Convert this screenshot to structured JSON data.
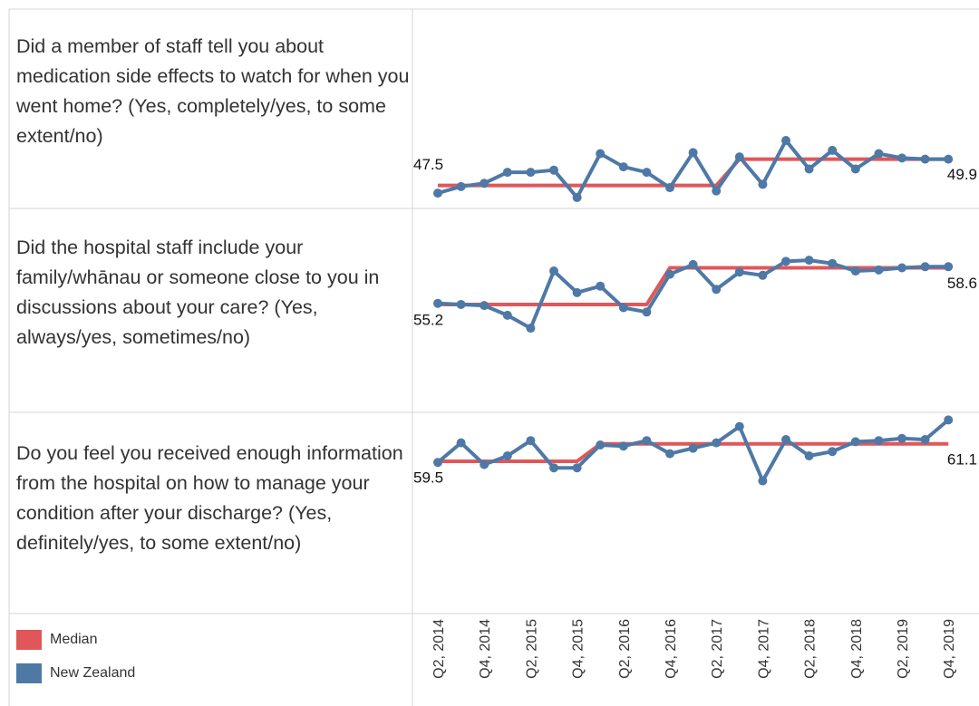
{
  "chart_data": [
    {
      "type": "line",
      "title": "Did a member of staff tell you about medication side effects to watch for when you went home? (Yes, completely/yes, to some extent/no)",
      "categories": [
        "Q2, 2014",
        null,
        "Q4, 2014",
        null,
        "Q2, 2015",
        null,
        "Q4, 2015",
        null,
        "Q2, 2016",
        null,
        "Q4, 2016",
        null,
        "Q2, 2017",
        null,
        "Q4, 2017",
        null,
        "Q2, 2018",
        null,
        "Q4, 2018",
        null,
        "Q2, 2019",
        null,
        "Q4, 2019"
      ],
      "ylim": [
        45.4,
        63.6
      ],
      "series": [
        {
          "name": "Median",
          "color": "#e15759",
          "values": [
            47.5,
            47.5,
            47.5,
            47.5,
            47.5,
            47.5,
            47.5,
            47.5,
            47.5,
            47.5,
            47.5,
            47.5,
            47.5,
            49.9,
            49.9,
            49.9,
            49.9,
            49.9,
            49.9,
            49.9,
            49.9,
            49.9,
            49.9
          ]
        },
        {
          "name": "New Zealand",
          "color": "#4e79a7",
          "values": [
            46.8,
            47.4,
            47.7,
            48.7,
            48.7,
            48.9,
            46.4,
            50.4,
            49.2,
            48.7,
            47.3,
            50.5,
            47.0,
            50.1,
            47.6,
            51.6,
            49.0,
            50.7,
            49.0,
            50.4,
            50.0,
            49.9,
            49.9
          ]
        }
      ]
    },
    {
      "type": "line",
      "title": "Did the hospital staff include your family/whānau or someone close to you in discussions about your care? (Yes, always/yes, sometimes/no)",
      "categories": [
        "Q2, 2014",
        null,
        "Q4, 2014",
        null,
        "Q2, 2015",
        null,
        "Q4, 2015",
        null,
        "Q2, 2016",
        null,
        "Q4, 2016",
        null,
        "Q2, 2017",
        null,
        "Q4, 2017",
        null,
        "Q2, 2018",
        null,
        "Q4, 2018",
        null,
        "Q2, 2019",
        null,
        "Q4, 2019"
      ],
      "ylim": [
        45.2,
        64.1
      ],
      "series": [
        {
          "name": "Median",
          "color": "#e15759",
          "values": [
            55.2,
            55.2,
            55.2,
            55.2,
            55.2,
            55.2,
            55.2,
            55.2,
            55.2,
            55.2,
            58.6,
            58.6,
            58.6,
            58.6,
            58.6,
            58.6,
            58.6,
            58.6,
            58.6,
            58.6,
            58.6,
            58.6,
            58.6
          ]
        },
        {
          "name": "New Zealand",
          "color": "#4e79a7",
          "values": [
            55.3,
            55.2,
            55.1,
            54.2,
            53.0,
            58.3,
            56.3,
            56.9,
            54.9,
            54.5,
            58.0,
            58.9,
            56.6,
            58.2,
            57.9,
            59.2,
            59.3,
            59.0,
            58.3,
            58.4,
            58.6,
            58.7,
            58.7
          ]
        }
      ]
    },
    {
      "type": "line",
      "title": "Do you feel you received enough information from the hospital on how to manage your condition after your discharge? (Yes, definitely/yes, to some extent/no)",
      "categories": [
        "Q2, 2014",
        null,
        "Q4, 2014",
        null,
        "Q2, 2015",
        null,
        "Q4, 2015",
        null,
        "Q2, 2016",
        null,
        "Q4, 2016",
        null,
        "Q2, 2017",
        null,
        "Q4, 2017",
        null,
        "Q2, 2018",
        null,
        "Q4, 2018",
        null,
        "Q2, 2019",
        null,
        "Q4, 2019"
      ],
      "ylim": [
        45.5,
        64.0
      ],
      "series": [
        {
          "name": "Median",
          "color": "#e15759",
          "values": [
            59.5,
            59.5,
            59.5,
            59.5,
            59.5,
            59.5,
            59.5,
            61.1,
            61.1,
            61.1,
            61.1,
            61.1,
            61.1,
            61.1,
            61.1,
            61.1,
            61.1,
            61.1,
            61.1,
            61.1,
            61.1,
            61.1,
            61.1
          ]
        },
        {
          "name": "New Zealand",
          "color": "#4e79a7",
          "values": [
            59.4,
            61.2,
            59.2,
            60.0,
            61.4,
            58.9,
            58.9,
            61.0,
            60.9,
            61.4,
            60.2,
            60.7,
            61.2,
            62.7,
            57.7,
            61.5,
            60.0,
            60.4,
            61.3,
            61.4,
            61.6,
            61.5,
            63.3
          ]
        }
      ]
    }
  ]
}
